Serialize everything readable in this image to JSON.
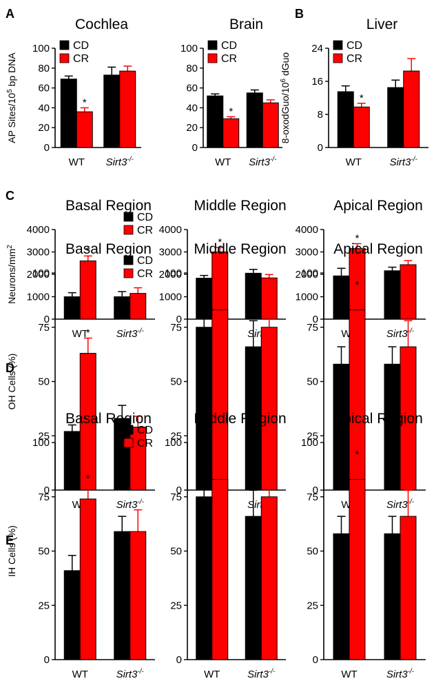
{
  "panel_letters": [
    "A",
    "B",
    "C",
    "D",
    "E"
  ],
  "chart_data": [
    {
      "type": "bar",
      "title": "Cochlea",
      "panel": "A",
      "ylabel": "AP Sites/10^5 bp DNA",
      "ylim": [
        0,
        100
      ],
      "yticks": [
        0,
        20,
        40,
        60,
        80,
        100
      ],
      "categories": [
        "WT",
        "Sirt3-/-"
      ],
      "category_italic": [
        false,
        true
      ],
      "series": [
        {
          "name": "CD",
          "color": "#000000",
          "values": [
            69,
            73
          ],
          "errors": [
            3,
            8
          ]
        },
        {
          "name": "CR",
          "color": "#ff0000",
          "values": [
            36,
            77
          ],
          "errors": [
            4,
            5
          ]
        }
      ],
      "significance": [
        {
          "category": 0,
          "series": 1,
          "label": "*"
        }
      ],
      "legend": "top-left"
    },
    {
      "type": "bar",
      "title": "Brain",
      "panel": "A",
      "ylabel": "",
      "ylim": [
        0,
        100
      ],
      "yticks": [
        0,
        20,
        40,
        60,
        80,
        100
      ],
      "categories": [
        "WT",
        "Sirt3-/-"
      ],
      "category_italic": [
        false,
        true
      ],
      "series": [
        {
          "name": "CD",
          "color": "#000000",
          "values": [
            52,
            55
          ],
          "errors": [
            2,
            3
          ]
        },
        {
          "name": "CR",
          "color": "#ff0000",
          "values": [
            29,
            45
          ],
          "errors": [
            2,
            3
          ]
        }
      ],
      "significance": [
        {
          "category": 0,
          "series": 1,
          "label": "*"
        }
      ],
      "legend": "top-left"
    },
    {
      "type": "bar",
      "title": "Liver",
      "panel": "B",
      "ylabel": "8-oxodGuo/10^6 dGuo",
      "ylim": [
        0,
        24
      ],
      "yticks": [
        0,
        8,
        16,
        24
      ],
      "categories": [
        "WT",
        "Sirt3-/-"
      ],
      "category_italic": [
        false,
        true
      ],
      "series": [
        {
          "name": "CD",
          "color": "#000000",
          "values": [
            13.5,
            14.5
          ],
          "errors": [
            1.4,
            1.8
          ]
        },
        {
          "name": "CR",
          "color": "#ff0000",
          "values": [
            9.8,
            18.5
          ],
          "errors": [
            0.9,
            3.0
          ]
        }
      ],
      "significance": [
        {
          "category": 0,
          "series": 1,
          "label": "*"
        }
      ],
      "legend": "top-left"
    },
    {
      "type": "bar",
      "title": "Basal Region",
      "panel": "C",
      "ylabel": "Neurons/mm^2",
      "ylim": [
        0,
        4000
      ],
      "yticks": [
        0,
        1000,
        2000,
        3000,
        4000
      ],
      "categories": [
        "WT",
        "Sirt3-/-"
      ],
      "category_italic": [
        false,
        true
      ],
      "series": [
        {
          "name": "CD",
          "color": "#000000",
          "values": [
            1000,
            1000
          ],
          "errors": [
            180,
            230
          ]
        },
        {
          "name": "CR",
          "color": "#ff0000",
          "values": [
            2600,
            1150
          ],
          "errors": [
            220,
            250
          ]
        }
      ],
      "significance": [
        {
          "category": 0,
          "series": 1,
          "label": "*"
        }
      ],
      "legend": "top-right"
    },
    {
      "type": "bar",
      "title": "Middle Region",
      "panel": "C",
      "ylabel": "",
      "ylim": [
        0,
        4000
      ],
      "yticks": [
        0,
        1000,
        2000,
        3000,
        4000
      ],
      "categories": [
        "WT",
        "Sirt3-/-"
      ],
      "category_italic": [
        false,
        true
      ],
      "series": [
        {
          "name": "CD",
          "color": "#000000",
          "values": [
            1830,
            2050
          ],
          "errors": [
            120,
            170
          ]
        },
        {
          "name": "CR",
          "color": "#ff0000",
          "values": [
            3000,
            1840
          ],
          "errors": [
            200,
            150
          ]
        }
      ],
      "significance": [
        {
          "category": 0,
          "series": 1,
          "label": "*"
        }
      ],
      "legend": "none"
    },
    {
      "type": "bar",
      "title": "Apical Region",
      "panel": "C",
      "ylabel": "",
      "ylim": [
        0,
        4000
      ],
      "yticks": [
        0,
        1000,
        2000,
        3000,
        4000
      ],
      "categories": [
        "WT",
        "Sirt3-/-"
      ],
      "category_italic": [
        false,
        true
      ],
      "series": [
        {
          "name": "CD",
          "color": "#000000",
          "values": [
            1930,
            2160
          ],
          "errors": [
            340,
            160
          ]
        },
        {
          "name": "CR",
          "color": "#ff0000",
          "values": [
            3150,
            2430
          ],
          "errors": [
            220,
            180
          ]
        }
      ],
      "significance": [
        {
          "category": 0,
          "series": 1,
          "label": "*"
        }
      ],
      "legend": "none"
    },
    {
      "type": "bar",
      "title": "Basal Region",
      "panel": "D",
      "ylabel": "OH Cells (%)",
      "ylim": [
        0,
        100
      ],
      "yticks": [
        0,
        25,
        50,
        75,
        100
      ],
      "categories": [
        "WT",
        "Sirt3-/-"
      ],
      "category_italic": [
        false,
        true
      ],
      "series": [
        {
          "name": "CD",
          "color": "#000000",
          "values": [
            27,
            33
          ],
          "errors": [
            3,
            6
          ]
        },
        {
          "name": "CR",
          "color": "#ff0000",
          "values": [
            63,
            29
          ],
          "errors": [
            7,
            5
          ]
        }
      ],
      "significance": [
        {
          "category": 0,
          "series": 1,
          "label": "*"
        }
      ],
      "legend": "top-right"
    },
    {
      "type": "bar",
      "title": "Middle Region",
      "panel": "D",
      "ylabel": "",
      "ylim": [
        0,
        100
      ],
      "yticks": [
        0,
        25,
        50,
        75,
        100
      ],
      "categories": [
        "WT",
        "Sirt3-/-"
      ],
      "category_italic": [
        false,
        true
      ],
      "series": [
        {
          "name": "CD",
          "color": "#000000",
          "values": [
            75,
            66
          ],
          "errors": [
            7,
            12
          ]
        },
        {
          "name": "CR",
          "color": "#ff0000",
          "values": [
            83,
            75
          ],
          "errors": [
            9,
            13
          ]
        }
      ],
      "significance": [],
      "legend": "none"
    },
    {
      "type": "bar",
      "title": "Apical Region",
      "panel": "D",
      "ylabel": "",
      "ylim": [
        0,
        100
      ],
      "yticks": [
        0,
        25,
        50,
        75,
        100
      ],
      "categories": [
        "WT",
        "Sirt3-/-"
      ],
      "category_italic": [
        false,
        true
      ],
      "series": [
        {
          "name": "CD",
          "color": "#000000",
          "values": [
            58,
            58
          ],
          "errors": [
            8,
            8
          ]
        },
        {
          "name": "CR",
          "color": "#ff0000",
          "values": [
            83,
            66
          ],
          "errors": [
            9,
            12
          ]
        }
      ],
      "significance": [
        {
          "category": 0,
          "series": 1,
          "label": "*"
        }
      ],
      "legend": "none"
    },
    {
      "type": "bar",
      "title": "Basal Region",
      "panel": "E",
      "ylabel": "IH Cells (%)",
      "ylim": [
        0,
        100
      ],
      "yticks": [
        0,
        25,
        50,
        75,
        100
      ],
      "categories": [
        "WT",
        "Sirt3-/-"
      ],
      "category_italic": [
        false,
        true
      ],
      "series": [
        {
          "name": "CD",
          "color": "#000000",
          "values": [
            41,
            59
          ],
          "errors": [
            7,
            7
          ]
        },
        {
          "name": "CR",
          "color": "#ff0000",
          "values": [
            74,
            59
          ],
          "errors": [
            7,
            10
          ]
        }
      ],
      "significance": [
        {
          "category": 0,
          "series": 1,
          "label": "*"
        }
      ],
      "legend": "top-right"
    },
    {
      "type": "bar",
      "title": "Middle Region",
      "panel": "E",
      "ylabel": "",
      "ylim": [
        0,
        100
      ],
      "yticks": [
        0,
        25,
        50,
        75,
        100
      ],
      "categories": [
        "WT",
        "Sirt3-/-"
      ],
      "category_italic": [
        false,
        true
      ],
      "series": [
        {
          "name": "CD",
          "color": "#000000",
          "values": [
            75,
            66
          ],
          "errors": [
            7,
            12
          ]
        },
        {
          "name": "CR",
          "color": "#ff0000",
          "values": [
            83,
            75
          ],
          "errors": [
            9,
            13
          ]
        }
      ],
      "significance": [],
      "legend": "none"
    },
    {
      "type": "bar",
      "title": "Apical Region",
      "panel": "E",
      "ylabel": "",
      "ylim": [
        0,
        100
      ],
      "yticks": [
        0,
        25,
        50,
        75,
        100
      ],
      "categories": [
        "WT",
        "Sirt3-/-"
      ],
      "category_italic": [
        false,
        true
      ],
      "series": [
        {
          "name": "CD",
          "color": "#000000",
          "values": [
            58,
            58
          ],
          "errors": [
            8,
            8
          ]
        },
        {
          "name": "CR",
          "color": "#ff0000",
          "values": [
            83,
            66
          ],
          "errors": [
            9,
            12
          ]
        }
      ],
      "significance": [
        {
          "category": 0,
          "series": 1,
          "label": "*"
        }
      ],
      "legend": "none"
    }
  ]
}
